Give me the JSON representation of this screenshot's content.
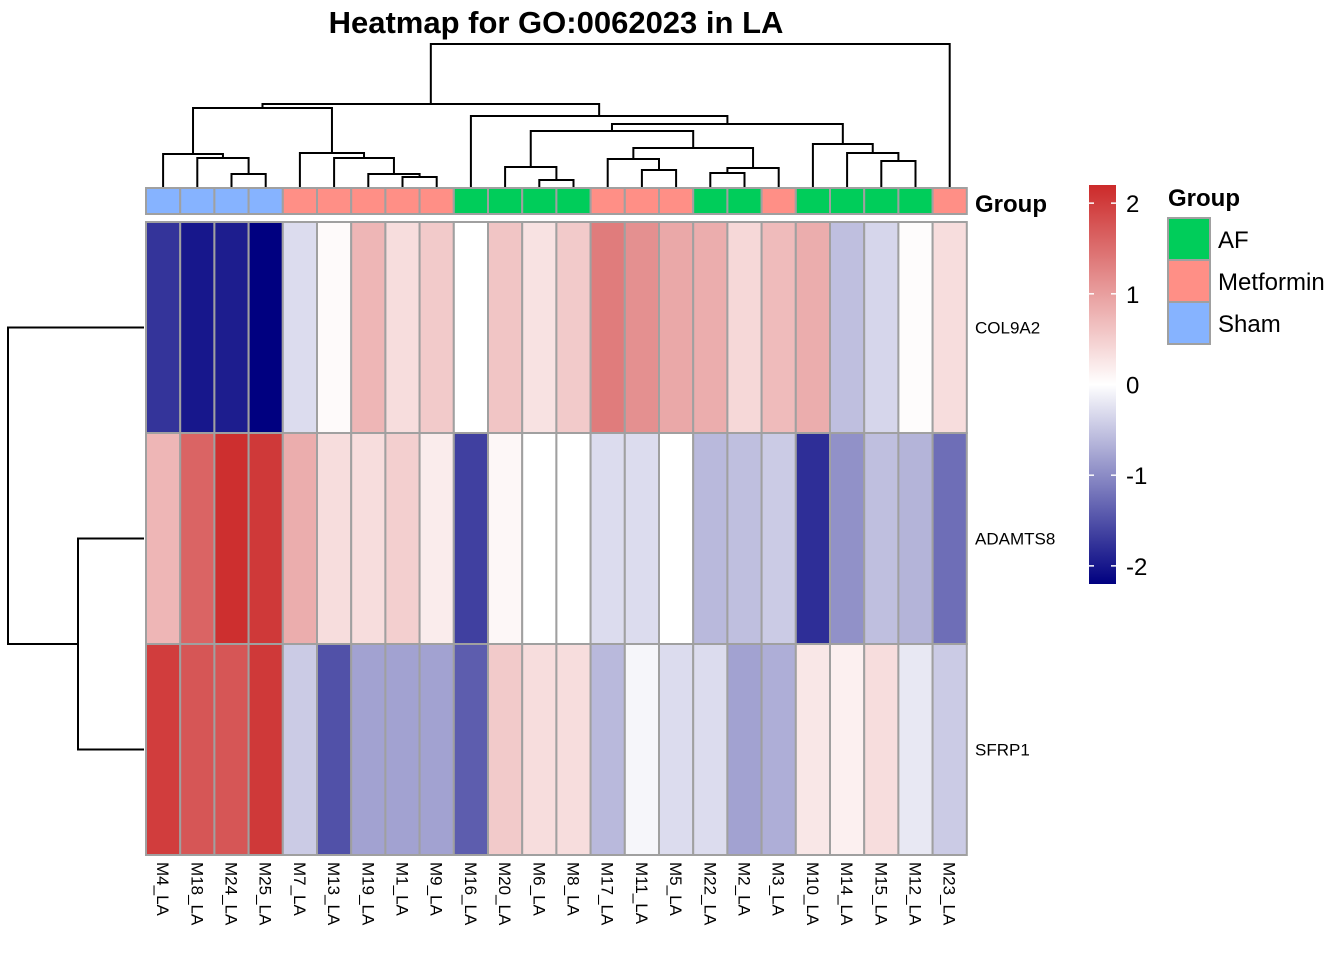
{
  "chart_data": {
    "type": "heatmap",
    "title": "Heatmap for GO:0062023 in LA",
    "columns": [
      "M4_LA",
      "M18_LA",
      "M24_LA",
      "M25_LA",
      "M7_LA",
      "M13_LA",
      "M19_LA",
      "M1_LA",
      "M9_LA",
      "M16_LA",
      "M20_LA",
      "M6_LA",
      "M8_LA",
      "M17_LA",
      "M11_LA",
      "M5_LA",
      "M22_LA",
      "M2_LA",
      "M3_LA",
      "M10_LA",
      "M14_LA",
      "M15_LA",
      "M12_LA",
      "M23_LA"
    ],
    "rows": [
      "COL9A2",
      "ADAMTS8",
      "SFRP1"
    ],
    "values": [
      [
        -1.75,
        -2.0,
        -1.95,
        -2.2,
        -0.3,
        0.05,
        0.75,
        0.35,
        0.55,
        0.0,
        0.6,
        0.3,
        0.55,
        1.35,
        1.15,
        0.9,
        0.85,
        0.4,
        0.7,
        0.85,
        -0.55,
        -0.35,
        0.03,
        0.35
      ],
      [
        0.75,
        1.6,
        2.15,
        2.05,
        0.85,
        0.35,
        0.35,
        0.5,
        0.2,
        -1.65,
        0.08,
        0.0,
        0.0,
        -0.3,
        -0.3,
        0.0,
        -0.6,
        -0.55,
        -0.45,
        -1.8,
        -0.95,
        -0.55,
        -0.65,
        -1.25
      ],
      [
        2.0,
        1.75,
        1.75,
        2.05,
        -0.45,
        -1.5,
        -0.8,
        -0.8,
        -0.8,
        -1.4,
        0.55,
        0.35,
        0.35,
        -0.6,
        -0.08,
        -0.3,
        -0.3,
        -0.8,
        -0.7,
        0.25,
        0.15,
        0.35,
        -0.2,
        -0.45
      ]
    ],
    "column_groups": [
      "Sham",
      "Sham",
      "Sham",
      "Sham",
      "Metformin",
      "Metformin",
      "Metformin",
      "Metformin",
      "Metformin",
      "AF",
      "AF",
      "AF",
      "AF",
      "Metformin",
      "Metformin",
      "Metformin",
      "AF",
      "AF",
      "Metformin",
      "AF",
      "AF",
      "AF",
      "AF",
      "Metformin"
    ],
    "annotation_label": "Group",
    "legend": {
      "title": "Group",
      "entries": [
        {
          "label": "AF",
          "color": "#00CD5A"
        },
        {
          "label": "Metformin",
          "color": "#FF8F86"
        },
        {
          "label": "Sham",
          "color": "#86B3FF"
        }
      ]
    },
    "color_scale": {
      "low": "#000080",
      "mid": "#FFFFFF",
      "high": "#CC2A2A",
      "range": [
        -2.2,
        2.2
      ],
      "ticks": [
        "2",
        "1",
        "0",
        "-1",
        "-2"
      ]
    }
  }
}
